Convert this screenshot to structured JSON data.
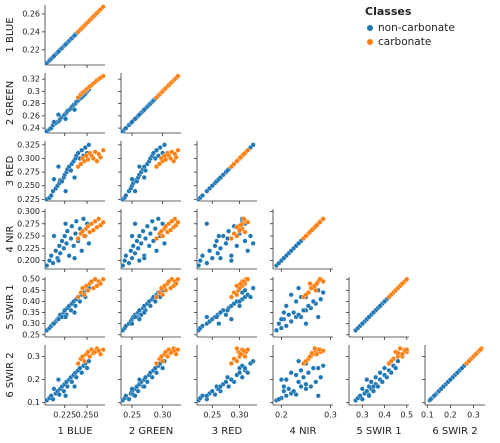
{
  "chart_data": {
    "type": "pairplot",
    "legend_title": "Classes",
    "legend_position": "upper right",
    "variables": [
      {
        "label": "1 BLUE",
        "lim": [
          0.203,
          0.27
        ],
        "yticks": [
          0.22,
          0.24,
          0.26
        ],
        "xticks": [
          0.225,
          {
            "value": 0.25,
            "label": "0.250"
          }
        ]
      },
      {
        "label": "2 GREEN",
        "lim": [
          0.232,
          0.33
        ],
        "yticks": [
          0.24,
          0.26,
          0.28,
          0.3,
          0.32
        ],
        "xticks": [
          0.25,
          {
            "value": 0.3,
            "label": "0.30"
          }
        ]
      },
      {
        "label": "3 RED",
        "lim": [
          0.222,
          0.332
        ],
        "yticks": [
          0.225,
          {
            "value": 0.25,
            "label": "0.250"
          },
          0.275,
          {
            "value": 0.3,
            "label": "0.300"
          },
          0.325
        ],
        "xticks": [
          0.25,
          {
            "value": 0.3,
            "label": "0.30"
          }
        ]
      },
      {
        "label": "4 NIR",
        "lim": [
          0.183,
          0.305
        ],
        "yticks": [
          {
            "value": 0.2,
            "label": "0.200"
          },
          0.225,
          {
            "value": 0.25,
            "label": "0.250"
          },
          0.275,
          {
            "value": 0.3,
            "label": "0.300"
          }
        ],
        "xticks": [
          0.2,
          0.3
        ]
      },
      {
        "label": "5 SWIR 1",
        "lim": [
          0.24,
          0.51
        ],
        "yticks": [
          0.25,
          {
            "value": 0.3,
            "label": "0.30"
          },
          0.35,
          {
            "value": 0.4,
            "label": "0.40"
          },
          0.45,
          {
            "value": 0.5,
            "label": "0.50"
          }
        ],
        "xticks": [
          0.3,
          0.4,
          0.5
        ]
      },
      {
        "label": "6 SWIR 2",
        "lim": [
          0.09,
          0.35
        ],
        "yticks": [
          0.1,
          0.2,
          0.3
        ],
        "xticks": [
          0.1,
          0.2,
          0.3
        ]
      }
    ],
    "series": [
      {
        "name": "non-carbonate",
        "color": "#1f77b4",
        "values": [
          [
            0.205,
            0.235,
            0.225,
            0.19,
            0.27,
            0.11
          ],
          [
            0.208,
            0.238,
            0.228,
            0.2,
            0.28,
            0.12
          ],
          [
            0.21,
            0.24,
            0.232,
            0.21,
            0.29,
            0.13
          ],
          [
            0.212,
            0.245,
            0.24,
            0.195,
            0.3,
            0.115
          ],
          [
            0.215,
            0.248,
            0.245,
            0.22,
            0.31,
            0.14
          ],
          [
            0.217,
            0.25,
            0.25,
            0.205,
            0.32,
            0.15
          ],
          [
            0.219,
            0.252,
            0.255,
            0.23,
            0.33,
            0.135
          ],
          [
            0.22,
            0.255,
            0.26,
            0.215,
            0.34,
            0.16
          ],
          [
            0.222,
            0.258,
            0.258,
            0.24,
            0.33,
            0.17
          ],
          [
            0.224,
            0.26,
            0.265,
            0.225,
            0.35,
            0.15
          ],
          [
            0.225,
            0.262,
            0.27,
            0.25,
            0.36,
            0.18
          ],
          [
            0.227,
            0.265,
            0.275,
            0.235,
            0.34,
            0.19
          ],
          [
            0.228,
            0.268,
            0.28,
            0.26,
            0.37,
            0.17
          ],
          [
            0.23,
            0.27,
            0.285,
            0.21,
            0.38,
            0.2
          ],
          [
            0.232,
            0.272,
            0.278,
            0.245,
            0.36,
            0.21
          ],
          [
            0.233,
            0.275,
            0.29,
            0.27,
            0.39,
            0.19
          ],
          [
            0.235,
            0.278,
            0.295,
            0.23,
            0.4,
            0.22
          ],
          [
            0.237,
            0.28,
            0.3,
            0.255,
            0.38,
            0.23
          ],
          [
            0.238,
            0.283,
            0.305,
            0.28,
            0.41,
            0.21
          ],
          [
            0.24,
            0.285,
            0.31,
            0.24,
            0.42,
            0.24
          ],
          [
            0.242,
            0.288,
            0.3,
            0.265,
            0.4,
            0.25
          ],
          [
            0.244,
            0.29,
            0.315,
            0.22,
            0.43,
            0.23
          ],
          [
            0.246,
            0.293,
            0.305,
            0.285,
            0.44,
            0.26
          ],
          [
            0.248,
            0.296,
            0.32,
            0.25,
            0.42,
            0.27
          ],
          [
            0.25,
            0.3,
            0.31,
            0.275,
            0.45,
            0.25
          ],
          [
            0.252,
            0.303,
            0.325,
            0.235,
            0.46,
            0.28
          ],
          [
            0.213,
            0.25,
            0.262,
            0.25,
            0.3,
            0.16
          ],
          [
            0.218,
            0.262,
            0.285,
            0.2,
            0.32,
            0.2
          ],
          [
            0.226,
            0.255,
            0.24,
            0.275,
            0.33,
            0.13
          ],
          [
            0.236,
            0.27,
            0.265,
            0.205,
            0.35,
            0.17
          ]
        ]
      },
      {
        "name": "carbonate",
        "color": "#ff7f0e",
        "values": [
          [
            0.24,
            0.29,
            0.285,
            0.245,
            0.42,
            0.27
          ],
          [
            0.243,
            0.295,
            0.29,
            0.255,
            0.44,
            0.29
          ],
          [
            0.245,
            0.298,
            0.3,
            0.26,
            0.46,
            0.3
          ],
          [
            0.247,
            0.3,
            0.295,
            0.25,
            0.43,
            0.28
          ],
          [
            0.249,
            0.303,
            0.305,
            0.265,
            0.47,
            0.31
          ],
          [
            0.251,
            0.305,
            0.298,
            0.27,
            0.45,
            0.32
          ],
          [
            0.253,
            0.308,
            0.31,
            0.258,
            0.48,
            0.3
          ],
          [
            0.255,
            0.31,
            0.305,
            0.275,
            0.49,
            0.33
          ],
          [
            0.257,
            0.313,
            0.3,
            0.262,
            0.46,
            0.315
          ],
          [
            0.259,
            0.315,
            0.312,
            0.28,
            0.5,
            0.32
          ],
          [
            0.261,
            0.318,
            0.295,
            0.268,
            0.47,
            0.335
          ],
          [
            0.263,
            0.32,
            0.308,
            0.285,
            0.49,
            0.325
          ],
          [
            0.265,
            0.322,
            0.302,
            0.272,
            0.48,
            0.31
          ],
          [
            0.268,
            0.325,
            0.315,
            0.278,
            0.5,
            0.33
          ]
        ]
      }
    ]
  }
}
